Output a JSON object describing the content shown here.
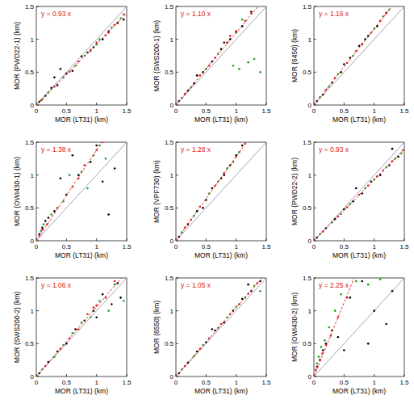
{
  "chart_data": [
    {
      "type": "scatter",
      "xlabel": "MOR (LT31) (km)",
      "ylabel": "MOR (PWD22-1) (km)",
      "xlim": [
        0,
        1.5
      ],
      "ylim": [
        0,
        1.5
      ],
      "xticks": [
        0,
        0.5,
        1,
        1.5
      ],
      "yticks": [
        0,
        0.5,
        1,
        1.5
      ],
      "annotation": {
        "text": "y = 0.93 x",
        "slope": 0.93
      },
      "series": [
        {
          "color": "#000000",
          "marker": "dot",
          "x": [
            0.05,
            0.15,
            0.25,
            0.35,
            0.5,
            0.6,
            0.75,
            0.85,
            0.95,
            1.1,
            1.2,
            1.35,
            1.45,
            0.4,
            0.3
          ],
          "values": [
            0.05,
            0.14,
            0.26,
            0.3,
            0.48,
            0.52,
            0.74,
            0.8,
            0.88,
            1.0,
            1.12,
            1.25,
            1.3,
            0.55,
            0.42
          ]
        },
        {
          "color": "#1fa31f",
          "marker": "dot",
          "x": [
            0.1,
            0.2,
            0.45,
            0.65,
            0.8,
            1.0,
            1.05,
            1.25,
            1.4,
            0.9
          ],
          "values": [
            0.09,
            0.19,
            0.42,
            0.6,
            0.75,
            0.92,
            1.0,
            1.18,
            1.32,
            0.82
          ]
        },
        {
          "color": "#e02020",
          "marker": "dot",
          "x": [
            0.08,
            0.3,
            0.55,
            0.7,
            0.9,
            1.0,
            1.15,
            1.3,
            1.45,
            1.2
          ],
          "values": [
            0.07,
            0.28,
            0.51,
            0.66,
            0.84,
            0.95,
            1.06,
            1.22,
            1.38,
            1.1
          ]
        }
      ]
    },
    {
      "type": "scatter",
      "xlabel": "MOR (LT31) (km)",
      "ylabel": "MOR (SWS200-1) (km)",
      "xlim": [
        0,
        1.5
      ],
      "ylim": [
        0,
        1.5
      ],
      "xticks": [
        0,
        0.5,
        1,
        1.5
      ],
      "yticks": [
        0,
        0.5,
        1,
        1.5
      ],
      "annotation": {
        "text": "y = 1.10 x",
        "slope": 1.1
      },
      "series": [
        {
          "color": "#000000",
          "marker": "dot",
          "x": [
            0.05,
            0.2,
            0.3,
            0.45,
            0.6,
            0.75,
            0.9,
            1.0,
            1.1,
            1.25,
            0.35,
            0.8
          ],
          "values": [
            0.06,
            0.22,
            0.33,
            0.5,
            0.66,
            0.85,
            1.0,
            1.12,
            1.2,
            1.42,
            0.45,
            0.95
          ]
        },
        {
          "color": "#1fa31f",
          "marker": "dot",
          "x": [
            0.1,
            0.25,
            0.5,
            0.7,
            0.95,
            1.05,
            1.1,
            1.2,
            1.3,
            1.4,
            0.85,
            1.0
          ],
          "values": [
            0.11,
            0.27,
            0.55,
            0.78,
            0.6,
            0.55,
            1.3,
            0.65,
            0.7,
            0.5,
            0.95,
            1.1
          ]
        },
        {
          "color": "#e02020",
          "marker": "dot",
          "x": [
            0.15,
            0.4,
            0.55,
            0.65,
            0.85,
            1.0,
            1.15,
            1.25,
            0.9
          ],
          "values": [
            0.17,
            0.45,
            0.6,
            0.72,
            0.95,
            1.12,
            1.28,
            1.4,
            1.05
          ]
        }
      ]
    },
    {
      "type": "scatter",
      "xlabel": "MOR (LT31) (km)",
      "ylabel": "MOR (6450) (km)",
      "xlim": [
        0,
        1.5
      ],
      "ylim": [
        0,
        1.5
      ],
      "xticks": [
        0,
        0.5,
        1,
        1.5
      ],
      "yticks": [
        0,
        0.5,
        1,
        1.5
      ],
      "annotation": {
        "text": "y = 1.16 x",
        "slope": 1.16
      },
      "series": [
        {
          "color": "#000000",
          "marker": "dot",
          "x": [
            0.05,
            0.15,
            0.3,
            0.45,
            0.6,
            0.75,
            0.9,
            1.05,
            1.2,
            0.5,
            0.85
          ],
          "values": [
            0.06,
            0.16,
            0.34,
            0.5,
            0.72,
            0.9,
            1.05,
            1.2,
            1.4,
            0.62,
            1.0
          ]
        },
        {
          "color": "#1fa31f",
          "marker": "dot",
          "x": [
            0.1,
            0.25,
            0.4,
            0.65,
            0.8,
            1.0,
            1.15,
            1.25
          ],
          "values": [
            0.12,
            0.28,
            0.47,
            0.75,
            0.93,
            1.16,
            1.35,
            1.45
          ]
        },
        {
          "color": "#e02020",
          "marker": "dot",
          "x": [
            0.2,
            0.35,
            0.55,
            0.7,
            0.95,
            1.1,
            1.2,
            0.8
          ],
          "values": [
            0.23,
            0.41,
            0.64,
            0.82,
            1.1,
            1.28,
            1.4,
            0.92
          ]
        }
      ]
    },
    {
      "type": "scatter",
      "xlabel": "MOR (LT31) (km)",
      "ylabel": "MOR (OWI430-1) (km)",
      "xlim": [
        0,
        1.5
      ],
      "ylim": [
        0,
        1.5
      ],
      "xticks": [
        0,
        0.5,
        1,
        1.5
      ],
      "yticks": [
        0,
        0.5,
        1,
        1.5
      ],
      "annotation": {
        "text": "y = 1.38 x",
        "slope": 1.38
      },
      "series": [
        {
          "color": "#000000",
          "marker": "dot",
          "x": [
            0.05,
            0.1,
            0.15,
            0.2,
            0.3,
            0.5,
            0.7,
            0.9,
            1.0,
            1.1,
            1.3,
            0.6,
            0.4,
            1.2
          ],
          "values": [
            0.1,
            0.2,
            0.3,
            0.35,
            0.45,
            0.7,
            1.0,
            1.2,
            1.45,
            0.9,
            1.1,
            1.3,
            0.95,
            0.4
          ]
        },
        {
          "color": "#1fa31f",
          "marker": "dot",
          "x": [
            0.08,
            0.12,
            0.25,
            0.45,
            0.75,
            0.95,
            1.05,
            1.15,
            0.85,
            0.55
          ],
          "values": [
            0.15,
            0.25,
            0.4,
            0.6,
            1.05,
            1.3,
            1.45,
            1.25,
            0.8,
            1.0
          ]
        },
        {
          "color": "#e02020",
          "marker": "dot",
          "x": [
            0.05,
            0.1,
            0.18,
            0.35,
            0.6,
            0.8,
            1.0,
            1.1,
            0.7
          ],
          "values": [
            0.08,
            0.17,
            0.25,
            0.5,
            0.82,
            1.15,
            1.38,
            1.5,
            0.95
          ]
        }
      ]
    },
    {
      "type": "scatter",
      "xlabel": "MOR (LT31) (km)",
      "ylabel": "MOR (VPF730) (km)",
      "xlim": [
        0,
        1.5
      ],
      "ylim": [
        0,
        1.5
      ],
      "xticks": [
        0,
        0.5,
        1,
        1.5
      ],
      "yticks": [
        0,
        0.5,
        1,
        1.5
      ],
      "annotation": {
        "text": "y = 1.28 x",
        "slope": 1.28
      },
      "series": [
        {
          "color": "#000000",
          "marker": "dot",
          "x": [
            0.05,
            0.2,
            0.35,
            0.5,
            0.6,
            0.75,
            0.9,
            1.0,
            1.1,
            0.45,
            0.8
          ],
          "values": [
            0.06,
            0.25,
            0.45,
            0.62,
            0.8,
            0.95,
            1.15,
            1.3,
            1.45,
            0.5,
            1.0
          ]
        },
        {
          "color": "#1fa31f",
          "marker": "dot",
          "x": [
            0.1,
            0.3,
            0.55,
            0.7,
            0.85,
            1.05,
            0.95
          ],
          "values": [
            0.13,
            0.38,
            0.72,
            0.9,
            1.1,
            1.35,
            1.2
          ]
        },
        {
          "color": "#e02020",
          "marker": "dot",
          "x": [
            0.15,
            0.4,
            0.65,
            0.8,
            1.0,
            1.15,
            0.25
          ],
          "values": [
            0.2,
            0.52,
            0.84,
            1.03,
            1.28,
            1.48,
            0.32
          ]
        }
      ]
    },
    {
      "type": "scatter",
      "xlabel": "MOR (LT31) (km)",
      "ylabel": "MOR (PWD22-2) (km)",
      "xlim": [
        0,
        1.5
      ],
      "ylim": [
        0,
        1.5
      ],
      "xticks": [
        0,
        0.5,
        1,
        1.5
      ],
      "yticks": [
        0,
        0.5,
        1,
        1.5
      ],
      "annotation": {
        "text": "y = 0.93 x",
        "slope": 0.93
      },
      "series": [
        {
          "color": "#000000",
          "marker": "dot",
          "x": [
            0.05,
            0.2,
            0.35,
            0.5,
            0.65,
            0.8,
            0.95,
            1.1,
            1.25,
            1.4,
            0.7,
            1.3
          ],
          "values": [
            0.05,
            0.19,
            0.33,
            0.48,
            0.6,
            0.72,
            0.9,
            1.0,
            1.15,
            1.28,
            0.8,
            1.4
          ]
        },
        {
          "color": "#1fa31f",
          "marker": "dot",
          "x": [
            0.1,
            0.3,
            0.45,
            0.6,
            0.85,
            1.0,
            1.2,
            1.35,
            1.45
          ],
          "values": [
            0.1,
            0.28,
            0.41,
            0.56,
            0.8,
            0.93,
            1.12,
            1.25,
            1.33
          ]
        },
        {
          "color": "#e02020",
          "marker": "dot",
          "x": [
            0.15,
            0.4,
            0.55,
            0.75,
            0.9,
            1.05,
            1.15,
            1.3,
            1.48
          ],
          "values": [
            0.14,
            0.37,
            0.51,
            0.7,
            0.84,
            0.98,
            1.07,
            1.21,
            1.38
          ]
        }
      ]
    },
    {
      "type": "scatter",
      "xlabel": "MOR (LT31) (km)",
      "ylabel": "MOR (SWS200-2) (km)",
      "xlim": [
        0,
        1.5
      ],
      "ylim": [
        0,
        1.5
      ],
      "xticks": [
        0,
        0.5,
        1,
        1.5
      ],
      "yticks": [
        0,
        0.5,
        1,
        1.5
      ],
      "annotation": {
        "text": "y = 1.06 x",
        "slope": 1.06
      },
      "series": [
        {
          "color": "#000000",
          "marker": "dot",
          "x": [
            0.05,
            0.2,
            0.35,
            0.5,
            0.65,
            0.8,
            0.95,
            1.1,
            1.25,
            1.35,
            1.0,
            1.4
          ],
          "values": [
            0.05,
            0.22,
            0.38,
            0.5,
            0.72,
            0.85,
            1.0,
            1.25,
            1.1,
            1.42,
            0.9,
            1.2
          ]
        },
        {
          "color": "#1fa31f",
          "marker": "dot",
          "x": [
            0.1,
            0.3,
            0.45,
            0.6,
            0.75,
            0.9,
            1.05,
            1.2,
            1.3,
            1.45
          ],
          "values": [
            0.11,
            0.3,
            0.48,
            0.66,
            0.82,
            0.9,
            1.15,
            1.0,
            1.4,
            1.15
          ]
        },
        {
          "color": "#e02020",
          "marker": "dot",
          "x": [
            0.15,
            0.4,
            0.55,
            0.7,
            0.85,
            1.0,
            1.15,
            1.3,
            0.95
          ],
          "values": [
            0.16,
            0.42,
            0.58,
            0.72,
            0.95,
            1.08,
            1.2,
            1.45,
            1.05
          ]
        }
      ]
    },
    {
      "type": "scatter",
      "xlabel": "MOR (LT31) (km)",
      "ylabel": "MOR (6550) (km)",
      "xlim": [
        0,
        1.5
      ],
      "ylim": [
        0,
        1.5
      ],
      "xticks": [
        0,
        0.5,
        1,
        1.5
      ],
      "yticks": [
        0,
        0.5,
        1,
        1.5
      ],
      "annotation": {
        "text": "y = 1.05 x",
        "slope": 1.05
      },
      "series": [
        {
          "color": "#000000",
          "marker": "dot",
          "x": [
            0.05,
            0.2,
            0.35,
            0.5,
            0.65,
            0.8,
            0.95,
            1.1,
            1.25,
            1.4,
            0.6,
            1.2
          ],
          "values": [
            0.05,
            0.21,
            0.38,
            0.52,
            0.7,
            0.82,
            1.0,
            1.18,
            1.3,
            1.45,
            0.72,
            1.4
          ]
        },
        {
          "color": "#1fa31f",
          "marker": "dot",
          "x": [
            0.1,
            0.3,
            0.45,
            0.7,
            0.85,
            1.0,
            1.15,
            1.3,
            1.4
          ],
          "values": [
            0.11,
            0.31,
            0.48,
            0.74,
            0.9,
            1.06,
            1.2,
            1.38,
            1.3
          ]
        },
        {
          "color": "#e02020",
          "marker": "dot",
          "x": [
            0.15,
            0.4,
            0.55,
            0.75,
            0.9,
            1.05,
            1.2,
            1.35
          ],
          "values": [
            0.16,
            0.42,
            0.58,
            0.8,
            0.95,
            1.1,
            1.26,
            1.42
          ]
        }
      ]
    },
    {
      "type": "scatter",
      "xlabel": "MOR (LT31) (km)",
      "ylabel": "MOR (OWI430-2) (km)",
      "xlim": [
        0,
        1.5
      ],
      "ylim": [
        0,
        1.5
      ],
      "xticks": [
        0,
        0.5,
        1,
        1.5
      ],
      "yticks": [
        0,
        0.5,
        1,
        1.5
      ],
      "annotation": {
        "text": "y = 2.25 x",
        "slope": 2.25
      },
      "series": [
        {
          "color": "#000000",
          "marker": "dot",
          "x": [
            0.05,
            0.1,
            0.15,
            0.2,
            0.3,
            0.4,
            0.6,
            0.8,
            1.0,
            1.2,
            0.5,
            0.9,
            1.3
          ],
          "values": [
            0.15,
            0.25,
            0.4,
            0.5,
            0.7,
            0.6,
            1.2,
            1.45,
            1.0,
            0.8,
            0.4,
            0.5,
            1.3
          ]
        },
        {
          "color": "#1fa31f",
          "marker": "dot",
          "x": [
            0.05,
            0.08,
            0.12,
            0.18,
            0.25,
            0.35,
            0.45,
            0.7,
            0.9,
            1.1
          ],
          "values": [
            0.2,
            0.3,
            0.45,
            0.55,
            0.75,
            1.0,
            1.25,
            1.45,
            1.4,
            1.48
          ]
        },
        {
          "color": "#e02020",
          "marker": "dot",
          "x": [
            0.03,
            0.06,
            0.1,
            0.14,
            0.2,
            0.28,
            0.4,
            0.55
          ],
          "values": [
            0.1,
            0.15,
            0.25,
            0.35,
            0.48,
            0.62,
            0.9,
            1.2
          ]
        }
      ]
    }
  ]
}
